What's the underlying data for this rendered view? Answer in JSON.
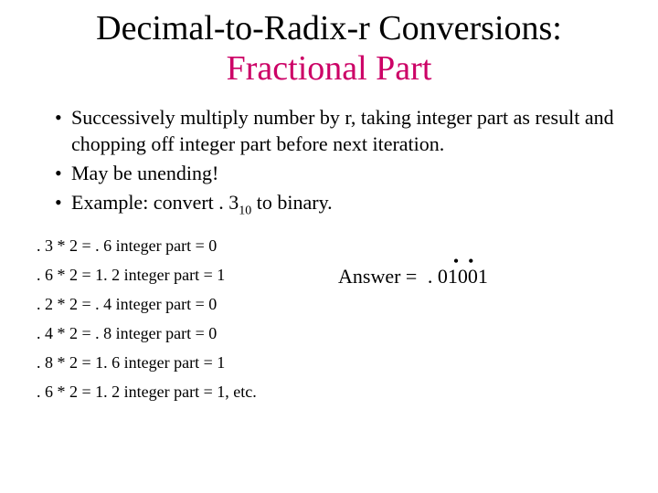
{
  "title": {
    "line1": "Decimal-to-Radix-r Conversions:",
    "line2": "Fractional Part"
  },
  "bullets": [
    "Successively multiply number by r, taking integer part as result and chopping off integer part before next iteration.",
    "May be unending!",
    "Example: convert . 3",
    " to binary."
  ],
  "example_sub": "10",
  "steps": [
    ". 3 * 2 = . 6 integer part = 0",
    ". 6 * 2 = 1. 2 integer part = 1",
    ". 2 * 2 = . 4 integer part = 0",
    ". 4 * 2 = . 8 integer part = 0",
    ". 8 * 2 = 1. 6 integer part = 1",
    ". 6 * 2 = 1. 2 integer part = 1, etc."
  ],
  "answer": {
    "label": "Answer = ",
    "value": " . 01001",
    "dot1": "•",
    "dot2": "•"
  },
  "colors": {
    "title_accent": "#cc0066",
    "text": "#000000",
    "background": "#ffffff"
  }
}
